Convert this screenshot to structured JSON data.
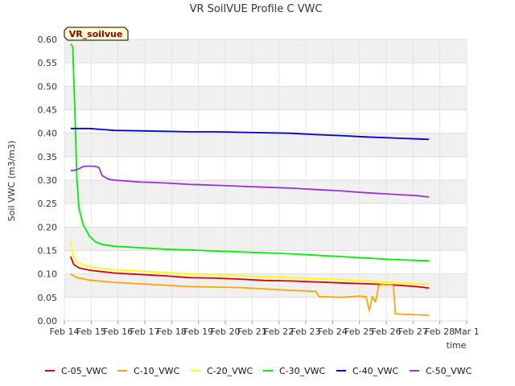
{
  "chart_data": {
    "type": "line",
    "title": "VR SoilVUE Profile C VWC",
    "xlabel": "time",
    "ylabel": "Soil VWC (m3/m3)",
    "ylim": [
      0,
      0.6
    ],
    "xlim": [
      "2024-02-14",
      "2024-03-01"
    ],
    "x_ticks": [
      "Feb 14",
      "Feb 15",
      "Feb 16",
      "Feb 17",
      "Feb 18",
      "Feb 19",
      "Feb 20",
      "Feb 21",
      "Feb 22",
      "Feb 23",
      "Feb 24",
      "Feb 25",
      "Feb 26",
      "Feb 27",
      "Feb 28",
      "Mar 1"
    ],
    "y_ticks": [
      "0.00",
      "0.05",
      "0.10",
      "0.15",
      "0.20",
      "0.25",
      "0.30",
      "0.35",
      "0.40",
      "0.45",
      "0.50",
      "0.55",
      "0.60"
    ],
    "grid": true,
    "legend_position": "bottom",
    "site_badge": "VR_soilvue",
    "series": [
      {
        "name": "C-05_VWC",
        "color": "#dd0000",
        "x": [
          "2024-02-14 06:00",
          "2024-02-14 09:00",
          "2024-02-14 14:00",
          "2024-02-15 00:00",
          "2024-02-15 12:00",
          "2024-02-16 00:00",
          "2024-02-17 00:00",
          "2024-02-18 00:00",
          "2024-02-19 00:00",
          "2024-02-20 00:00",
          "2024-02-21 00:00",
          "2024-02-22 00:00",
          "2024-02-23 00:00",
          "2024-02-24 00:00",
          "2024-02-25 00:00",
          "2024-02-26 00:00",
          "2024-02-27 00:00",
          "2024-02-28 00:00",
          "2024-02-28 12:00"
        ],
        "y": [
          0.137,
          0.12,
          0.113,
          0.108,
          0.105,
          0.102,
          0.099,
          0.096,
          0.092,
          0.091,
          0.089,
          0.086,
          0.085,
          0.083,
          0.081,
          0.079,
          0.077,
          0.073,
          0.07
        ]
      },
      {
        "name": "C-10_VWC",
        "color": "#ffa500",
        "x": [
          "2024-02-14 06:00",
          "2024-02-14 12:00",
          "2024-02-15 00:00",
          "2024-02-16 00:00",
          "2024-02-17 00:00",
          "2024-02-18 00:00",
          "2024-02-19 00:00",
          "2024-02-20 00:00",
          "2024-02-21 00:00",
          "2024-02-22 00:00",
          "2024-02-23 00:00",
          "2024-02-24 00:00",
          "2024-02-24 03:00",
          "2024-02-25 00:00",
          "2024-02-25 18:00",
          "2024-02-25 21:00",
          "2024-02-26 00:00",
          "2024-02-26 03:00",
          "2024-02-26 06:00",
          "2024-02-26 09:00",
          "2024-02-26 12:00",
          "2024-02-26 15:00",
          "2024-02-26 18:00",
          "2024-02-27 00:00",
          "2024-02-27 02:00",
          "2024-02-27 04:00",
          "2024-02-27 12:00",
          "2024-02-28 00:00",
          "2024-02-28 12:00"
        ],
        "y": [
          0.1,
          0.092,
          0.087,
          0.082,
          0.079,
          0.076,
          0.073,
          0.072,
          0.071,
          0.068,
          0.065,
          0.063,
          0.052,
          0.05,
          0.053,
          0.052,
          0.052,
          0.022,
          0.052,
          0.04,
          0.075,
          0.078,
          0.077,
          0.077,
          0.075,
          0.015,
          0.014,
          0.013,
          0.012
        ]
      },
      {
        "name": "C-20_VWC",
        "color": "#ffff00",
        "x": [
          "2024-02-14 06:00",
          "2024-02-14 09:00",
          "2024-02-14 12:00",
          "2024-02-15 00:00",
          "2024-02-16 00:00",
          "2024-02-17 00:00",
          "2024-02-18 00:00",
          "2024-02-19 00:00",
          "2024-02-20 00:00",
          "2024-02-21 00:00",
          "2024-02-22 00:00",
          "2024-02-23 00:00",
          "2024-02-24 00:00",
          "2024-02-25 00:00",
          "2024-02-26 00:00",
          "2024-02-27 00:00",
          "2024-02-28 00:00",
          "2024-02-28 12:00"
        ],
        "y": [
          0.17,
          0.135,
          0.125,
          0.115,
          0.109,
          0.106,
          0.103,
          0.1,
          0.098,
          0.096,
          0.094,
          0.092,
          0.09,
          0.088,
          0.085,
          0.082,
          0.079,
          0.078
        ]
      },
      {
        "name": "C-30_VWC",
        "color": "#00ee00",
        "x": [
          "2024-02-14 06:00",
          "2024-02-14 08:00",
          "2024-02-14 10:00",
          "2024-02-14 12:00",
          "2024-02-14 14:00",
          "2024-02-14 18:00",
          "2024-02-15 00:00",
          "2024-02-15 06:00",
          "2024-02-15 12:00",
          "2024-02-16 00:00",
          "2024-02-17 00:00",
          "2024-02-18 00:00",
          "2024-02-19 00:00",
          "2024-02-20 00:00",
          "2024-02-21 00:00",
          "2024-02-22 00:00",
          "2024-02-23 00:00",
          "2024-02-24 00:00",
          "2024-02-25 00:00",
          "2024-02-26 00:00",
          "2024-02-27 00:00",
          "2024-02-28 00:00",
          "2024-02-28 12:00"
        ],
        "y": [
          0.59,
          0.585,
          0.45,
          0.3,
          0.24,
          0.205,
          0.18,
          0.168,
          0.163,
          0.159,
          0.156,
          0.153,
          0.151,
          0.149,
          0.147,
          0.145,
          0.143,
          0.14,
          0.137,
          0.134,
          0.131,
          0.129,
          0.128
        ]
      },
      {
        "name": "C-40_VWC",
        "color": "#0000cc",
        "x": [
          "2024-02-14 06:00",
          "2024-02-15 00:00",
          "2024-02-15 12:00",
          "2024-02-16 00:00",
          "2024-02-17 00:00",
          "2024-02-18 00:00",
          "2024-02-19 00:00",
          "2024-02-20 00:00",
          "2024-02-21 00:00",
          "2024-02-22 00:00",
          "2024-02-23 00:00",
          "2024-02-24 00:00",
          "2024-02-25 00:00",
          "2024-02-26 00:00",
          "2024-02-27 00:00",
          "2024-02-28 00:00",
          "2024-02-28 12:00"
        ],
        "y": [
          0.41,
          0.41,
          0.408,
          0.406,
          0.405,
          0.404,
          0.403,
          0.403,
          0.402,
          0.401,
          0.4,
          0.397,
          0.395,
          0.392,
          0.39,
          0.388,
          0.387
        ]
      },
      {
        "name": "C-50_VWC",
        "color": "#9933cc",
        "x": [
          "2024-02-14 06:00",
          "2024-02-14 12:00",
          "2024-02-14 18:00",
          "2024-02-15 00:00",
          "2024-02-15 06:00",
          "2024-02-15 09:00",
          "2024-02-15 12:00",
          "2024-02-15 18:00",
          "2024-02-16 00:00",
          "2024-02-17 00:00",
          "2024-02-18 00:00",
          "2024-02-19 00:00",
          "2024-02-20 00:00",
          "2024-02-21 00:00",
          "2024-02-22 00:00",
          "2024-02-23 00:00",
          "2024-02-24 00:00",
          "2024-02-25 00:00",
          "2024-02-26 00:00",
          "2024-02-27 00:00",
          "2024-02-28 00:00",
          "2024-02-28 12:00"
        ],
        "y": [
          0.32,
          0.322,
          0.329,
          0.33,
          0.329,
          0.327,
          0.31,
          0.302,
          0.3,
          0.296,
          0.294,
          0.291,
          0.289,
          0.287,
          0.285,
          0.283,
          0.28,
          0.277,
          0.273,
          0.27,
          0.267,
          0.264
        ]
      }
    ]
  }
}
